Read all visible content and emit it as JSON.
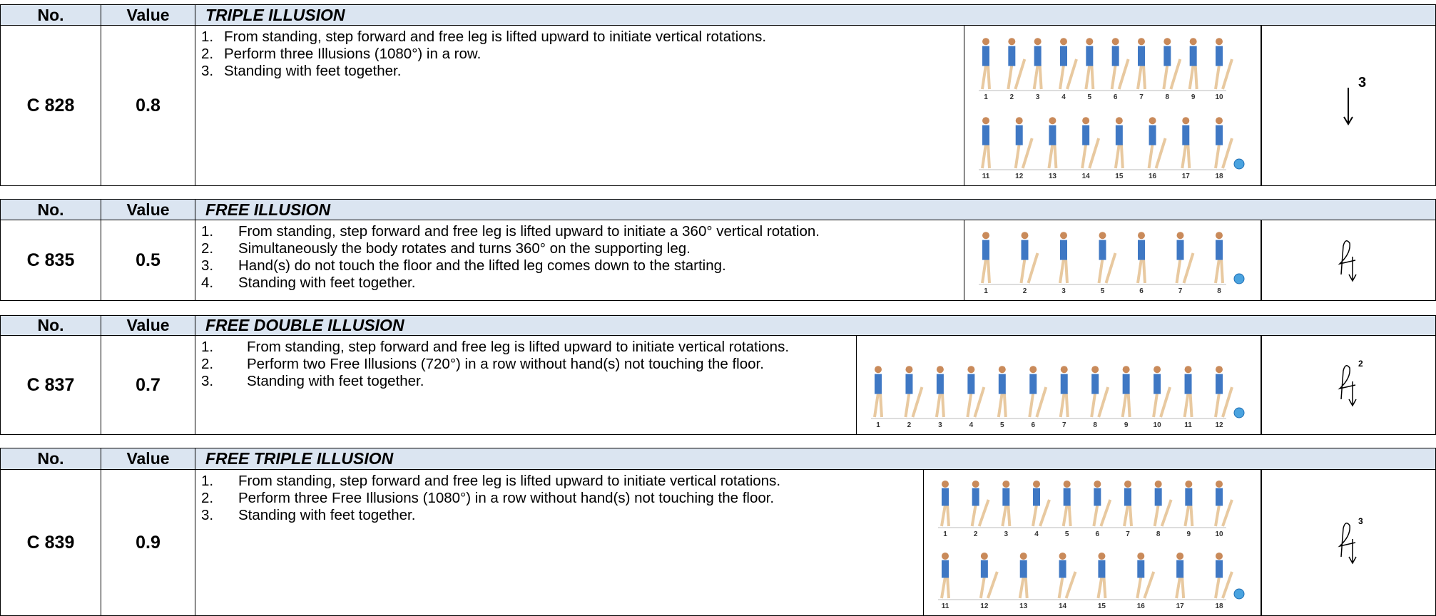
{
  "tables": [
    {
      "header": {
        "no": "No.",
        "value": "Value",
        "title": "TRIPLE ILLUSION"
      },
      "code": "C 828",
      "value": 0.8,
      "steps": [
        {
          "num": "1.",
          "text": "From standing, step forward and free leg is lifted upward to initiate vertical rotations."
        },
        {
          "num": "2.",
          "text": "Perform three Illusions (1080°) in a row."
        },
        {
          "num": "3.",
          "text": "Standing with feet together."
        }
      ],
      "frame_labels": [
        [
          1,
          2,
          3,
          4,
          5,
          6,
          7,
          8,
          9,
          10
        ],
        [
          11,
          12,
          13,
          14,
          15,
          16,
          17,
          18
        ]
      ],
      "symbol_superscript": "3"
    },
    {
      "header": {
        "no": "No.",
        "value": "Value",
        "title": "FREE ILLUSION"
      },
      "code": "C 835",
      "value": 0.5,
      "steps": [
        {
          "num": "1.",
          "text": "From standing, step forward and free leg is lifted upward to initiate a 360° vertical rotation."
        },
        {
          "num": "2.",
          "text": "Simultaneously the body rotates and turns 360° on the supporting leg."
        },
        {
          "num": "3.",
          "text": "Hand(s) do not touch the floor and the lifted leg comes down to the starting."
        },
        {
          "num": "4.",
          "text": "Standing with feet together."
        }
      ],
      "frame_labels": [
        [
          1,
          2,
          3,
          5,
          6,
          7,
          8
        ]
      ]
    },
    {
      "header": {
        "no": "No.",
        "value": "Value",
        "title": "FREE DOUBLE ILLUSION"
      },
      "code": "C 837",
      "value": 0.7,
      "steps": [
        {
          "num": "1.",
          "text": "From standing, step forward and free leg is lifted upward to initiate vertical rotations."
        },
        {
          "num": "2.",
          "text": "Perform two Free Illusions (720°) in a row without hand(s) not touching the floor."
        },
        {
          "num": "3.",
          "text": "Standing with feet together."
        }
      ],
      "frame_labels": [
        [
          1,
          2,
          3,
          4,
          5,
          6,
          7,
          8,
          9,
          10,
          11,
          12
        ]
      ],
      "symbol_superscript": "2"
    },
    {
      "header": {
        "no": "No.",
        "value": "Value",
        "title": "FREE TRIPLE ILLUSION"
      },
      "code": "C 839",
      "value": 0.9,
      "steps": [
        {
          "num": "1.",
          "text": "From standing, step forward and free leg is lifted upward to initiate vertical rotations."
        },
        {
          "num": "2.",
          "text": "Perform three Free Illusions (1080°) in a row without hand(s) not touching the floor."
        },
        {
          "num": "3.",
          "text": "Standing with feet together."
        }
      ],
      "frame_labels": [
        [
          1,
          2,
          3,
          4,
          5,
          6,
          7,
          8,
          9,
          10
        ],
        [
          11,
          12,
          13,
          14,
          15,
          16,
          17,
          18
        ]
      ],
      "symbol_superscript": "3"
    }
  ]
}
